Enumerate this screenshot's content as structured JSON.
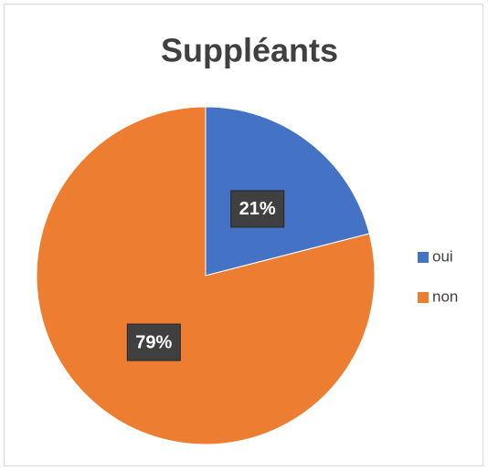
{
  "chart_data": {
    "type": "pie",
    "title": "Suppléants",
    "categories": [
      "oui",
      "non"
    ],
    "values": [
      21,
      79
    ],
    "value_labels": [
      "21%",
      "79%"
    ],
    "colors": [
      "#4472c4",
      "#ed7d31"
    ],
    "legend": "right"
  }
}
